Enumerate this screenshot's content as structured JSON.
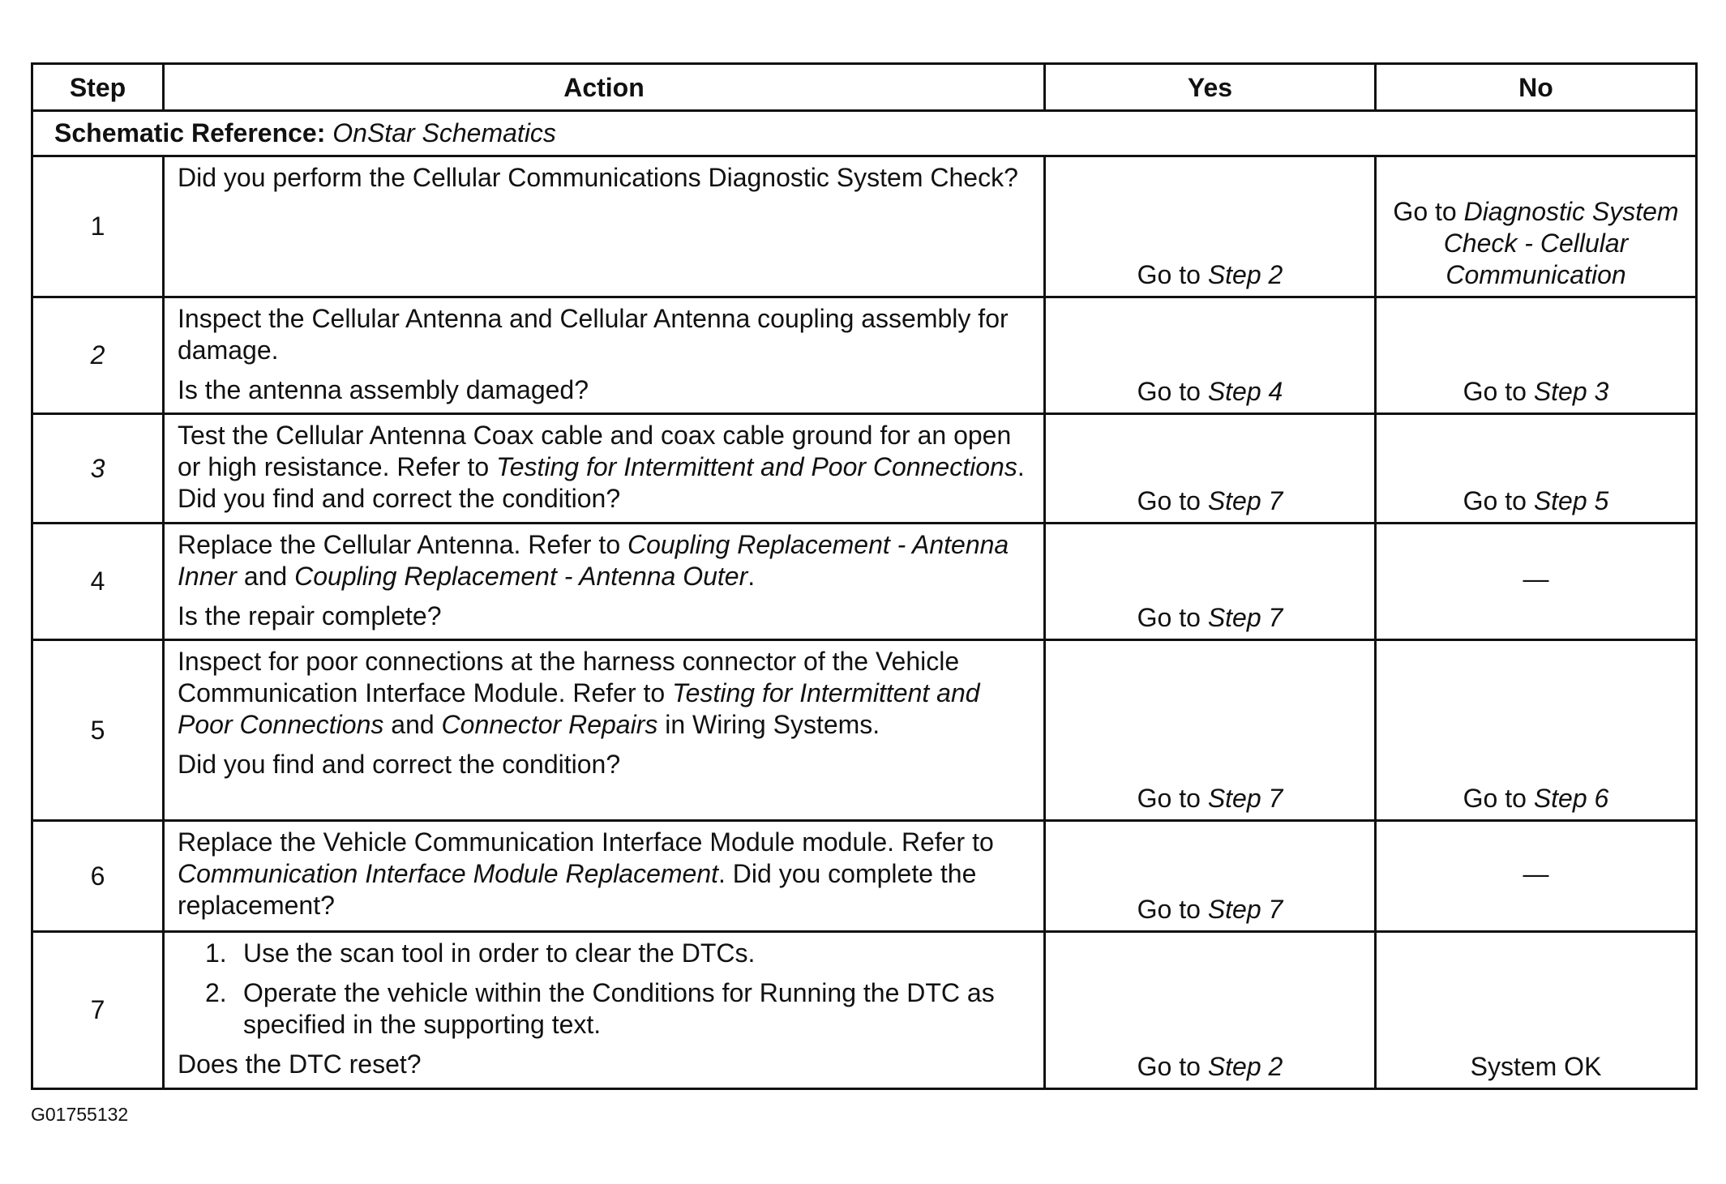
{
  "headers": {
    "step": "Step",
    "action": "Action",
    "yes": "Yes",
    "no": "No"
  },
  "schematic": {
    "label": "Schematic Reference:",
    "value": "OnStar Schematics"
  },
  "rows": [
    {
      "step": "1",
      "step_italic": false,
      "action": [
        [
          {
            "t": "Did you perform the Cellular Communications Diagnostic System Check?"
          }
        ]
      ],
      "yes": [
        {
          "t": "Go to "
        },
        {
          "t": "Step 2",
          "i": true
        }
      ],
      "no": [
        {
          "t": "Go to "
        },
        {
          "t": "Diagnostic System Check - Cellular Communication",
          "i": true
        }
      ]
    },
    {
      "step": "2",
      "step_italic": true,
      "action": [
        [
          {
            "t": "Inspect the Cellular Antenna and Cellular Antenna coupling assembly for damage."
          }
        ],
        [
          {
            "t": "Is the antenna assembly damaged?"
          }
        ]
      ],
      "yes": [
        {
          "t": "Go to "
        },
        {
          "t": "Step 4",
          "i": true
        }
      ],
      "no": [
        {
          "t": "Go to "
        },
        {
          "t": "Step 3",
          "i": true
        }
      ]
    },
    {
      "step": "3",
      "step_italic": true,
      "action": [
        [
          {
            "t": "Test the Cellular Antenna Coax cable and coax cable ground for an open or high resistance. Refer to "
          },
          {
            "t": "Testing for Intermittent and Poor Connections",
            "i": true
          },
          {
            "t": ". Did you find and correct the condition?"
          }
        ]
      ],
      "yes": [
        {
          "t": "Go to "
        },
        {
          "t": "Step 7",
          "i": true
        }
      ],
      "no": [
        {
          "t": "Go to "
        },
        {
          "t": "Step 5",
          "i": true
        }
      ]
    },
    {
      "step": "4",
      "step_italic": false,
      "action": [
        [
          {
            "t": "Replace the Cellular Antenna. Refer to "
          },
          {
            "t": "Coupling Replacement - Antenna Inner",
            "i": true
          },
          {
            "t": " and "
          },
          {
            "t": "Coupling Replacement - Antenna Outer",
            "i": true
          },
          {
            "t": "."
          }
        ],
        [
          {
            "t": "Is the repair complete?"
          }
        ]
      ],
      "yes": [
        {
          "t": "Go to "
        },
        {
          "t": "Step 7",
          "i": true
        }
      ],
      "no": [
        {
          "t": "—"
        }
      ],
      "no_mid": true
    },
    {
      "step": "5",
      "step_italic": false,
      "action": [
        [
          {
            "t": "Inspect for poor connections at the harness connector of the Vehicle Communication Interface Module. Refer to "
          },
          {
            "t": "Testing for Intermittent and Poor Connections",
            "i": true
          },
          {
            "t": " and "
          },
          {
            "t": "Connector Repairs",
            "i": true
          },
          {
            "t": " in Wiring Systems."
          }
        ],
        [
          {
            "t": "Did you find and correct the condition?"
          }
        ]
      ],
      "yes": [
        {
          "t": "Go to "
        },
        {
          "t": "Step 7",
          "i": true
        }
      ],
      "no": [
        {
          "t": "Go to "
        },
        {
          "t": "Step 6",
          "i": true
        }
      ]
    },
    {
      "step": "6",
      "step_italic": false,
      "action": [
        [
          {
            "t": "Replace the Vehicle Communication Interface Module module. Refer to "
          },
          {
            "t": "Communication Interface Module Replacement",
            "i": true
          },
          {
            "t": ". Did you complete the replacement?"
          }
        ]
      ],
      "yes": [
        {
          "t": "Go to "
        },
        {
          "t": "Step 7",
          "i": true
        }
      ],
      "no": [
        {
          "t": "—"
        }
      ],
      "no_mid": true
    },
    {
      "step": "7",
      "step_italic": false,
      "list": [
        {
          "n": "1.",
          "t": "Use the scan tool in order to clear the DTCs."
        },
        {
          "n": "2.",
          "t": "Operate the vehicle within the Conditions for Running the DTC as specified in the supporting text."
        }
      ],
      "action": [
        [
          {
            "t": "Does the DTC reset?"
          }
        ]
      ],
      "yes": [
        {
          "t": "Go to "
        },
        {
          "t": "Step 2",
          "i": true
        }
      ],
      "no": [
        {
          "t": "System OK"
        }
      ]
    }
  ],
  "figure_id": "G01755132"
}
